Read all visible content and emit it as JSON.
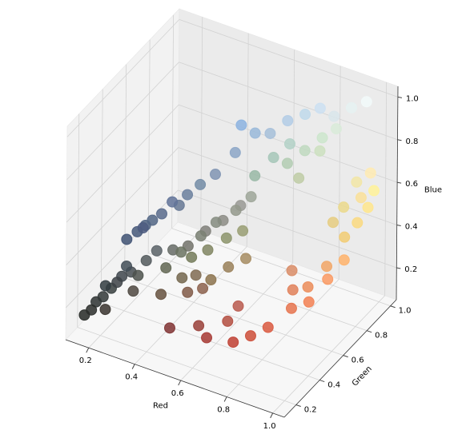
{
  "chart_data": {
    "type": "scatter3d",
    "xlabel": "Red",
    "ylabel": "Green",
    "zlabel": "Blue",
    "xlim": [
      0.1,
      1.05
    ],
    "ylim": [
      0.1,
      1.05
    ],
    "zlim": [
      0.05,
      1.05
    ],
    "xticks": [
      0.2,
      0.4,
      0.6,
      0.8,
      {
        "value": 1,
        "label": "1.0"
      }
    ],
    "yticks": [
      0.2,
      0.4,
      0.6,
      0.8,
      {
        "value": 1,
        "label": "1.0"
      }
    ],
    "zticks": [
      0.2,
      0.4,
      0.6,
      0.8,
      {
        "value": 1,
        "label": "1.0"
      }
    ],
    "grid": true,
    "color_from_values": true,
    "x": [
      0.15,
      0.18,
      0.2,
      0.22,
      0.17,
      0.25,
      0.28,
      0.24,
      0.3,
      0.2,
      0.26,
      0.32,
      0.35,
      0.22,
      0.3,
      0.25,
      0.3,
      0.28,
      0.35,
      0.32,
      0.4,
      0.38,
      0.3,
      0.42,
      0.45,
      0.5,
      0.55,
      0.6,
      0.55,
      0.65,
      0.4,
      0.45,
      0.5,
      0.55,
      0.6,
      0.48,
      0.52,
      0.58,
      0.62,
      0.42,
      0.38,
      0.45,
      0.5,
      0.55,
      0.6,
      0.45,
      0.5,
      0.55,
      0.6,
      0.65,
      0.5,
      0.55,
      0.4,
      0.75,
      0.7,
      0.8,
      0.65,
      0.85,
      0.72,
      0.6,
      0.5,
      0.9,
      0.95,
      0.92,
      0.98,
      0.95,
      1.0,
      0.88,
      0.85,
      0.95,
      0.98,
      1.0,
      0.98,
      1.0,
      0.95,
      0.92,
      0.9,
      1.0,
      0.7,
      0.75,
      0.8,
      0.7,
      0.65,
      0.85,
      0.8,
      0.6,
      0.75,
      0.9,
      0.85,
      0.95,
      0.8,
      0.7,
      0.75
    ],
    "y": [
      0.16,
      0.2,
      0.22,
      0.25,
      0.18,
      0.28,
      0.3,
      0.26,
      0.32,
      0.24,
      0.3,
      0.35,
      0.38,
      0.2,
      0.28,
      0.32,
      0.38,
      0.35,
      0.42,
      0.4,
      0.47,
      0.45,
      0.36,
      0.5,
      0.55,
      0.58,
      0.65,
      0.72,
      0.7,
      0.75,
      0.42,
      0.45,
      0.5,
      0.55,
      0.6,
      0.5,
      0.55,
      0.6,
      0.65,
      0.45,
      0.4,
      0.48,
      0.52,
      0.58,
      0.62,
      0.4,
      0.42,
      0.45,
      0.5,
      0.55,
      0.35,
      0.38,
      0.32,
      0.25,
      0.3,
      0.3,
      0.22,
      0.35,
      0.35,
      0.25,
      0.2,
      0.45,
      0.5,
      0.55,
      0.6,
      0.65,
      0.7,
      0.5,
      0.55,
      0.8,
      0.85,
      0.9,
      0.88,
      0.95,
      0.9,
      0.85,
      0.8,
      0.92,
      0.8,
      0.85,
      0.9,
      0.82,
      0.78,
      0.92,
      0.88,
      0.72,
      0.8,
      0.95,
      0.9,
      0.98,
      0.88,
      0.8,
      0.85
    ],
    "z": [
      0.15,
      0.2,
      0.22,
      0.25,
      0.17,
      0.3,
      0.32,
      0.28,
      0.3,
      0.26,
      0.34,
      0.36,
      0.4,
      0.18,
      0.25,
      0.45,
      0.5,
      0.48,
      0.55,
      0.52,
      0.58,
      0.6,
      0.5,
      0.62,
      0.65,
      0.7,
      0.78,
      0.85,
      0.88,
      0.85,
      0.4,
      0.42,
      0.48,
      0.52,
      0.58,
      0.45,
      0.5,
      0.55,
      0.6,
      0.38,
      0.32,
      0.35,
      0.38,
      0.42,
      0.45,
      0.3,
      0.32,
      0.3,
      0.35,
      0.38,
      0.28,
      0.3,
      0.25,
      0.2,
      0.25,
      0.22,
      0.2,
      0.25,
      0.3,
      0.22,
      0.2,
      0.3,
      0.32,
      0.35,
      0.38,
      0.4,
      0.42,
      0.35,
      0.4,
      0.45,
      0.5,
      0.55,
      0.6,
      0.6,
      0.65,
      0.55,
      0.5,
      0.7,
      0.7,
      0.75,
      0.8,
      0.78,
      0.72,
      0.85,
      0.75,
      0.65,
      0.65,
      0.95,
      0.92,
      0.98,
      0.95,
      0.9,
      0.92
    ]
  }
}
